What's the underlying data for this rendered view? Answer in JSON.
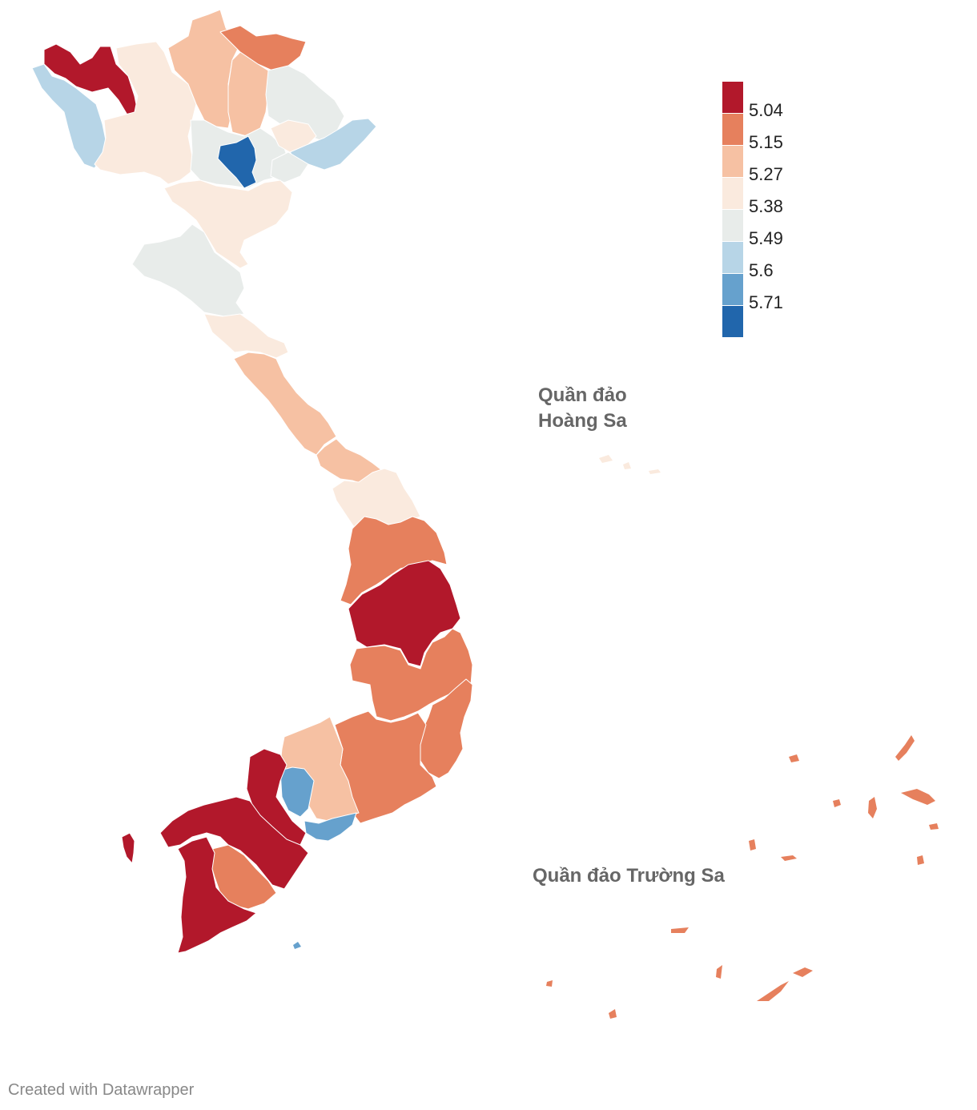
{
  "map": {
    "labels": {
      "paracel": [
        "Quần đảo",
        "Hoàng Sa"
      ],
      "spratly": "Quần đảo Trường Sa"
    },
    "palette": {
      "c1": "#b2182b",
      "c2": "#e6805d",
      "c3": "#f6c1a3",
      "c4": "#faeade",
      "c5": "#e8ecea",
      "c6": "#b7d5e7",
      "c7": "#66a1cd",
      "c8": "#2166ac"
    }
  },
  "legend": {
    "colors": [
      "#b2182b",
      "#e6805d",
      "#f6c1a3",
      "#faeade",
      "#e8ecea",
      "#b7d5e7",
      "#66a1cd",
      "#2166ac"
    ],
    "ticks": [
      "5.04",
      "5.15",
      "5.27",
      "5.38",
      "5.49",
      "5.6",
      "5.71"
    ]
  },
  "credit": "Created with Datawrapper"
}
